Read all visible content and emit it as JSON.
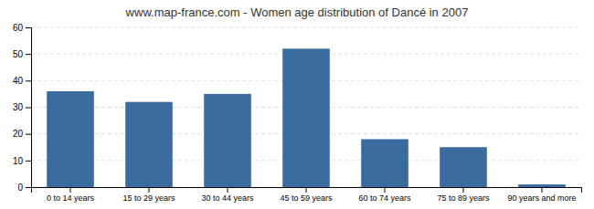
{
  "chart_data": {
    "type": "bar",
    "title": "www.map-france.com - Women age distribution of Dancé in 2007",
    "categories": [
      "0 to 14 years",
      "15 to 29 years",
      "30 to 44 years",
      "45 to 59 years",
      "60 to 74 years",
      "75 to 89 years",
      "90 years and more"
    ],
    "values": [
      36,
      32,
      35,
      52,
      18,
      15,
      1
    ],
    "color": "#3a6b9f",
    "ylim": [
      0,
      60
    ],
    "yticks": [
      0,
      10,
      20,
      30,
      40,
      50,
      60
    ],
    "grid": true
  }
}
